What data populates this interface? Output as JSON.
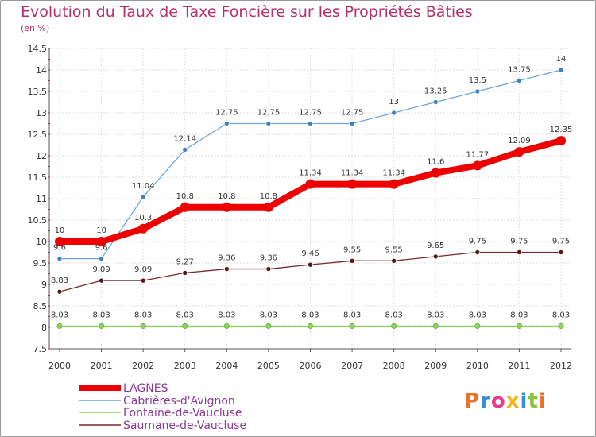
{
  "title": "Evolution du Taux de Taxe Foncière sur les Propriétés Bâties",
  "unit_label": "(en %)",
  "logo": {
    "text": "Proxiti",
    "colors": [
      "#e8732c",
      "#3a8fd4",
      "#e83c8c",
      "#f0b81e",
      "#3a8fd4",
      "#8ac43f",
      "#e8732c"
    ]
  },
  "chart_data": {
    "type": "line",
    "title": "Evolution du Taux de Taxe Foncière sur les Propriétés Bâties",
    "ylabel": "(en %)",
    "x": [
      "2000",
      "2001",
      "2002",
      "2003",
      "2004",
      "2005",
      "2006",
      "2007",
      "2008",
      "2009",
      "2010",
      "2011",
      "2012"
    ],
    "ylim": [
      7.5,
      14.5
    ],
    "yticks": [
      "7.5",
      "8",
      "8.5",
      "9",
      "9.5",
      "10",
      "10.5",
      "11",
      "11.5",
      "12",
      "12.5",
      "13",
      "13.5",
      "14",
      "14.5"
    ],
    "grid": "horizontal",
    "legend_position": "bottom-left",
    "series": [
      {
        "name": "LAGNES",
        "color": "#ee0000",
        "values": [
          10,
          10,
          10.3,
          10.8,
          10.8,
          10.8,
          11.34,
          11.34,
          11.34,
          11.6,
          11.77,
          12.09,
          12.35
        ],
        "labels": [
          "10",
          "10",
          "10.3",
          "10.8",
          "10.8",
          "10.8",
          "11.34",
          "11.34",
          "11.34",
          "11.6",
          "11.77",
          "12.09",
          "12.35"
        ]
      },
      {
        "name": "Cabrières-d'Avignon",
        "color": "#6fa6d6",
        "values": [
          9.6,
          9.6,
          11.04,
          12.14,
          12.75,
          12.75,
          12.75,
          12.75,
          13,
          13.25,
          13.5,
          13.75,
          14
        ],
        "labels": [
          "9.6",
          "9.6",
          "11.04",
          "12.14",
          "12.75",
          "12.75",
          "12.75",
          "12.75",
          "13",
          "13.25",
          "13.5",
          "13.75",
          "14"
        ]
      },
      {
        "name": "Fontaine-de-Vaucluse",
        "color": "#8fd45a",
        "values": [
          8.03,
          8.03,
          8.03,
          8.03,
          8.03,
          8.03,
          8.03,
          8.03,
          8.03,
          8.03,
          8.03,
          8.03,
          8.03
        ],
        "labels": [
          "8.03",
          "8.03",
          "8.03",
          "8.03",
          "8.03",
          "8.03",
          "8.03",
          "8.03",
          "8.03",
          "8.03",
          "8.03",
          "8.03",
          "8.03"
        ]
      },
      {
        "name": "Saumane-de-Vaucluse",
        "color": "#7a2a2a",
        "values": [
          8.83,
          9.09,
          9.09,
          9.27,
          9.36,
          9.36,
          9.46,
          9.55,
          9.55,
          9.65,
          9.75,
          9.75,
          9.75
        ],
        "labels": [
          "8.83",
          "9.09",
          "9.09",
          "9.27",
          "9.36",
          "9.36",
          "9.46",
          "9.55",
          "9.55",
          "9.65",
          "9.75",
          "9.75",
          "9.75"
        ]
      }
    ]
  }
}
